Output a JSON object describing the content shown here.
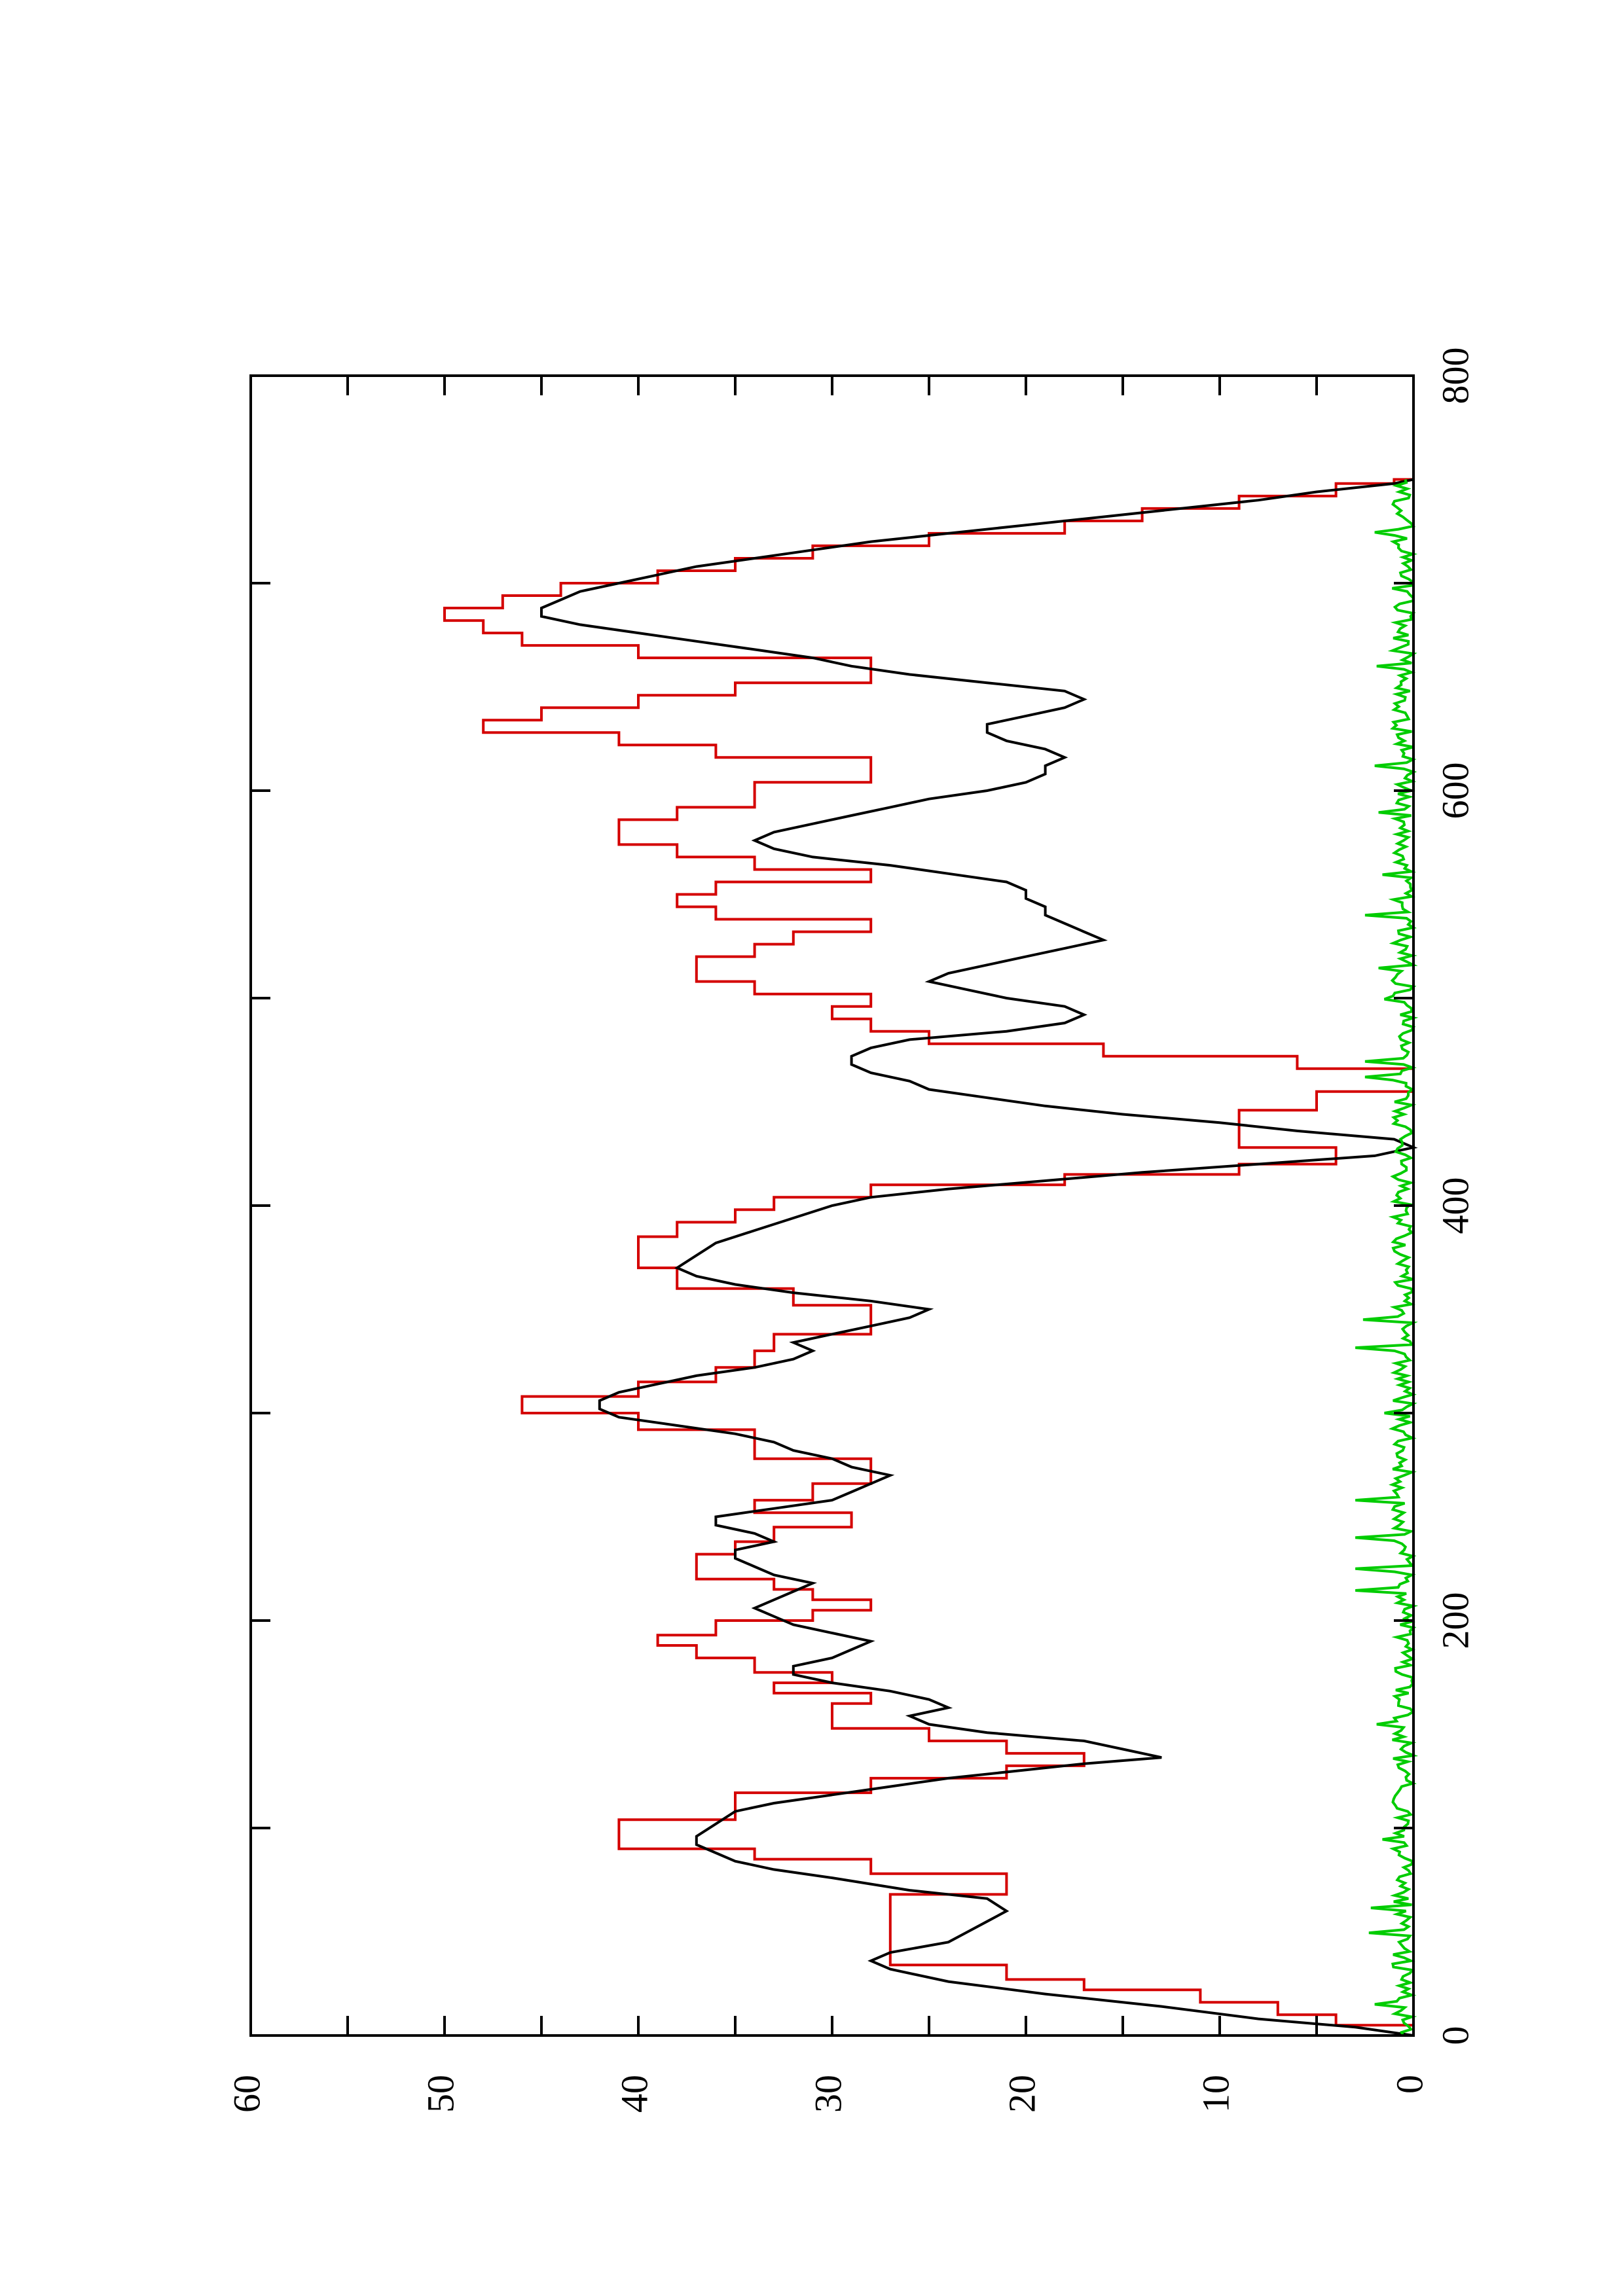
{
  "chart_data": {
    "type": "line",
    "title": "",
    "xlabel": "",
    "ylabel": "",
    "orientation": "rotated-90-ccw",
    "xlim": [
      0,
      800
    ],
    "ylim": [
      0,
      60
    ],
    "x_ticks": [
      0,
      200,
      400,
      600,
      800
    ],
    "x_tick_labels": [
      "0",
      "200",
      "400",
      "600",
      "800"
    ],
    "y_ticks": [
      0,
      10,
      20,
      30,
      40,
      50,
      60
    ],
    "y_tick_labels": [
      "0",
      "10",
      "20",
      "30",
      "40",
      "50",
      "60"
    ],
    "grid": false,
    "legend": "none",
    "series": [
      {
        "color": "#d40000",
        "style": "step",
        "x": [
          0,
          5,
          10,
          16,
          22,
          27,
          34,
          40,
          48,
          55,
          62,
          68,
          73,
          78,
          85,
          90,
          97,
          104,
          110,
          117,
          124,
          130,
          136,
          142,
          148,
          154,
          160,
          165,
          170,
          175,
          182,
          188,
          193,
          200,
          205,
          210,
          215,
          220,
          226,
          232,
          238,
          245,
          252,
          258,
          266,
          272,
          278,
          285,
          292,
          300,
          308,
          315,
          322,
          330,
          338,
          345,
          352,
          360,
          370,
          378,
          385,
          392,
          398,
          404,
          410,
          415,
          420,
          428,
          436,
          446,
          455,
          460,
          466,
          472,
          478,
          484,
          490,
          496,
          502,
          508,
          514,
          520,
          526,
          532,
          538,
          544,
          550,
          556,
          562,
          568,
          574,
          580,
          586,
          592,
          598,
          604,
          610,
          616,
          622,
          628,
          634,
          640,
          646,
          652,
          658,
          664,
          670,
          676,
          682,
          688,
          694,
          700,
          706,
          712,
          718,
          724,
          730,
          736,
          742,
          748,
          750
        ],
        "y": [
          0,
          4,
          7,
          11,
          17,
          21,
          27,
          27,
          27,
          27,
          27,
          21,
          21,
          28,
          34,
          41,
          41,
          35,
          35,
          28,
          21,
          17,
          21,
          25,
          30,
          30,
          28,
          33,
          30,
          34,
          37,
          39,
          36,
          31,
          28,
          31,
          33,
          37,
          37,
          35,
          33,
          29,
          34,
          31,
          28,
          28,
          34,
          34,
          40,
          46,
          40,
          36,
          34,
          33,
          28,
          28,
          32,
          38,
          40,
          40,
          38,
          35,
          33,
          28,
          18,
          9,
          4,
          9,
          9,
          5,
          0,
          0,
          6,
          16,
          25,
          28,
          30,
          28,
          34,
          37,
          37,
          34,
          32,
          28,
          36,
          38,
          36,
          28,
          34,
          38,
          41,
          41,
          38,
          34,
          34,
          28,
          28,
          36,
          41,
          48,
          45,
          40,
          35,
          28,
          28,
          40,
          46,
          48,
          50,
          47,
          44,
          39,
          35,
          31,
          25,
          18,
          14,
          9,
          4,
          1,
          0
        ]
      },
      {
        "color": "#000000",
        "style": "line",
        "x": [
          0,
          4,
          8,
          14,
          20,
          26,
          32,
          36,
          40,
          45,
          50,
          55,
          60,
          66,
          70,
          76,
          80,
          84,
          88,
          92,
          96,
          102,
          108,
          112,
          116,
          120,
          124,
          128,
          131,
          134,
          138,
          142,
          146,
          150,
          154,
          158,
          162,
          166,
          170,
          174,
          178,
          182,
          186,
          190,
          194,
          198,
          202,
          206,
          210,
          214,
          218,
          222,
          226,
          230,
          234,
          238,
          242,
          246,
          250,
          254,
          258,
          262,
          266,
          270,
          274,
          278,
          282,
          286,
          290,
          294,
          298,
          302,
          306,
          310,
          314,
          318,
          322,
          326,
          330,
          334,
          338,
          342,
          346,
          350,
          354,
          358,
          362,
          366,
          370,
          376,
          382,
          388,
          394,
          400,
          404,
          408,
          412,
          416,
          420,
          424,
          428,
          432,
          436,
          440,
          444,
          448,
          452,
          456,
          460,
          464,
          468,
          472,
          476,
          480,
          484,
          488,
          492,
          496,
          500,
          504,
          508,
          512,
          516,
          520,
          524,
          528,
          532,
          536,
          540,
          544,
          548,
          552,
          556,
          560,
          564,
          568,
          572,
          576,
          580,
          584,
          588,
          592,
          596,
          600,
          604,
          608,
          612,
          616,
          620,
          624,
          628,
          632,
          636,
          640,
          644,
          648,
          652,
          656,
          660,
          664,
          668,
          672,
          676,
          680,
          684,
          688,
          692,
          696,
          700,
          704,
          708,
          712,
          716,
          720,
          724,
          728,
          732,
          736,
          740,
          744,
          748,
          750
        ],
        "y": [
          0,
          3,
          8,
          13,
          19,
          24,
          27,
          28,
          27,
          24,
          23,
          22,
          21,
          22,
          26,
          30,
          33,
          35,
          36,
          37,
          37,
          36,
          35,
          33,
          30,
          27,
          24,
          20,
          17,
          13,
          15,
          17,
          22,
          25,
          26,
          24,
          25,
          27,
          30,
          32,
          32,
          30,
          29,
          28,
          30,
          32,
          33,
          34,
          33,
          32,
          31,
          33,
          34,
          35,
          35,
          33,
          34,
          36,
          36,
          33,
          30,
          29,
          28,
          27,
          29,
          30,
          32,
          33,
          35,
          38,
          41,
          42,
          42,
          41,
          39,
          37,
          34,
          32,
          31,
          32,
          30,
          28,
          26,
          25,
          28,
          32,
          35,
          37,
          38,
          37,
          36,
          34,
          32,
          30,
          28,
          24,
          19,
          14,
          8,
          2,
          0,
          1,
          6,
          10,
          15,
          19,
          22,
          25,
          26,
          28,
          29,
          29,
          28,
          26,
          21,
          18,
          17,
          18,
          21,
          23,
          25,
          24,
          22,
          20,
          18,
          16,
          17,
          18,
          19,
          19,
          20,
          20,
          21,
          24,
          27,
          31,
          33,
          34,
          33,
          31,
          29,
          27,
          25,
          22,
          20,
          19,
          19,
          18,
          19,
          21,
          22,
          22,
          20,
          18,
          17,
          18,
          22,
          26,
          29,
          31,
          34,
          37,
          40,
          43,
          45,
          45,
          44,
          43,
          41,
          39,
          37,
          34,
          31,
          28,
          24,
          20,
          16,
          12,
          8,
          5,
          1,
          0
        ]
      },
      {
        "color": "#00cc00",
        "style": "noise",
        "x_start": 0,
        "x_end": 750,
        "y_range": [
          0,
          3
        ],
        "peaks": [
          {
            "x": 15,
            "y": 2.0
          },
          {
            "x": 50,
            "y": 2.3
          },
          {
            "x": 62,
            "y": 2.2
          },
          {
            "x": 95,
            "y": 1.6
          },
          {
            "x": 145,
            "y": 2.8
          },
          {
            "x": 150,
            "y": 1.9
          },
          {
            "x": 190,
            "y": 1.7
          },
          {
            "x": 215,
            "y": 3.0
          },
          {
            "x": 225,
            "y": 3.0
          },
          {
            "x": 240,
            "y": 3.0
          },
          {
            "x": 258,
            "y": 3.0
          },
          {
            "x": 265,
            "y": 2.5
          },
          {
            "x": 300,
            "y": 1.5
          },
          {
            "x": 332,
            "y": 3.0
          },
          {
            "x": 345,
            "y": 2.6
          },
          {
            "x": 370,
            "y": 2.0
          },
          {
            "x": 385,
            "y": 1.8
          },
          {
            "x": 430,
            "y": 1.5
          },
          {
            "x": 448,
            "y": 2.5
          },
          {
            "x": 462,
            "y": 2.5
          },
          {
            "x": 470,
            "y": 2.5
          },
          {
            "x": 478,
            "y": 2.2
          },
          {
            "x": 500,
            "y": 1.5
          },
          {
            "x": 515,
            "y": 1.8
          },
          {
            "x": 535,
            "y": 2.3
          },
          {
            "x": 540,
            "y": 2.5
          },
          {
            "x": 560,
            "y": 1.6
          },
          {
            "x": 590,
            "y": 1.8
          },
          {
            "x": 612,
            "y": 2.0
          },
          {
            "x": 640,
            "y": 1.5
          },
          {
            "x": 660,
            "y": 1.9
          },
          {
            "x": 685,
            "y": 1.8
          },
          {
            "x": 700,
            "y": 2.0
          },
          {
            "x": 725,
            "y": 2.0
          },
          {
            "x": 745,
            "y": 2.1
          }
        ]
      }
    ]
  }
}
